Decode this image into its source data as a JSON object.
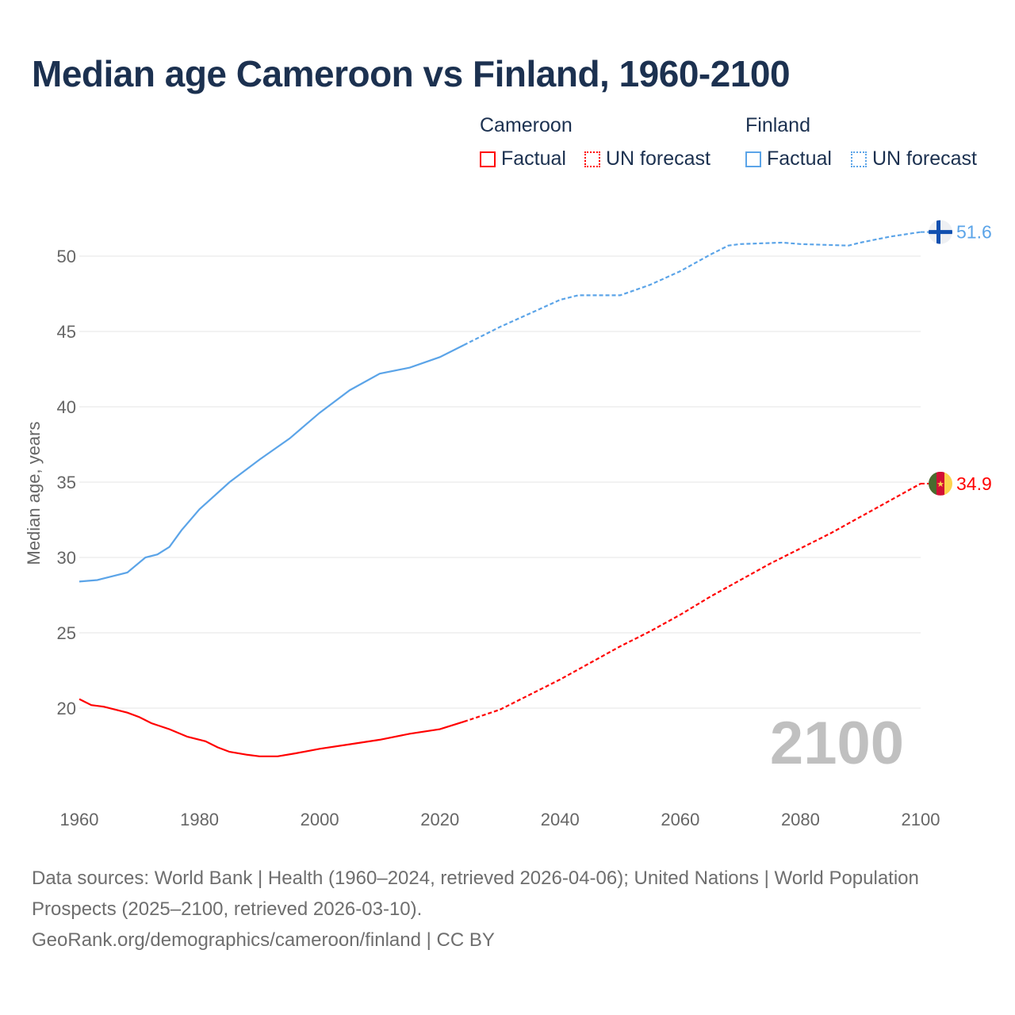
{
  "title": "Median age Cameroon vs Finland, 1960-2100",
  "legend": {
    "groups": [
      {
        "name": "Cameroon",
        "color": "#ff0000",
        "factual": "Factual",
        "forecast": "UN forecast"
      },
      {
        "name": "Finland",
        "color": "#5ba4e8",
        "factual": "Factual",
        "forecast": "UN forecast"
      }
    ]
  },
  "year_watermark": "2100",
  "sources": {
    "line1": "Data sources: World Bank | Health (1960–2024, retrieved 2026-04-06); United Nations | World Population Prospects (2025–2100, retrieved 2026-03-10).",
    "line2": "GeoRank.org/demographics/cameroon/finland | CC BY"
  },
  "chart_data": {
    "type": "line",
    "title": "Median age Cameroon vs Finland, 1960-2100",
    "xlabel": "",
    "ylabel": "Median age, years",
    "xlim": [
      1960,
      2100
    ],
    "ylim": [
      15,
      52
    ],
    "x_ticks": [
      1960,
      1980,
      2000,
      2020,
      2040,
      2060,
      2080,
      2100
    ],
    "y_ticks": [
      20,
      25,
      30,
      35,
      40,
      45,
      50
    ],
    "grid": true,
    "forecast_start": 2024,
    "series": [
      {
        "name": "Cameroon",
        "color": "#ff0000",
        "end_label": "34.9",
        "flag": "cameroon-flag",
        "x": [
          1960,
          1962,
          1964,
          1968,
          1970,
          1972,
          1975,
          1978,
          1981,
          1983,
          1985,
          1988,
          1990,
          1993,
          1996,
          2000,
          2005,
          2010,
          2015,
          2020,
          2024,
          2030,
          2035,
          2040,
          2045,
          2050,
          2055,
          2060,
          2065,
          2070,
          2075,
          2080,
          2085,
          2090,
          2095,
          2100
        ],
        "y": [
          20.6,
          20.2,
          20.1,
          19.7,
          19.4,
          19.0,
          18.6,
          18.1,
          17.8,
          17.4,
          17.1,
          16.9,
          16.8,
          16.8,
          17.0,
          17.3,
          17.6,
          17.9,
          18.3,
          18.6,
          19.1,
          19.9,
          20.9,
          21.9,
          23.0,
          24.1,
          25.1,
          26.2,
          27.4,
          28.5,
          29.6,
          30.6,
          31.6,
          32.7,
          33.8,
          34.9
        ]
      },
      {
        "name": "Finland",
        "color": "#5ba4e8",
        "end_label": "51.6",
        "flag": "finland-flag",
        "x": [
          1960,
          1963,
          1968,
          1971,
          1973,
          1975,
          1977,
          1980,
          1985,
          1990,
          1995,
          2000,
          2005,
          2010,
          2015,
          2020,
          2024,
          2030,
          2035,
          2040,
          2043,
          2050,
          2055,
          2060,
          2065,
          2068,
          2070,
          2077,
          2080,
          2088,
          2090,
          2095,
          2100
        ],
        "y": [
          28.4,
          28.5,
          29.0,
          30.0,
          30.2,
          30.7,
          31.8,
          33.2,
          35.0,
          36.5,
          37.9,
          39.6,
          41.1,
          42.2,
          42.6,
          43.3,
          44.1,
          45.3,
          46.2,
          47.1,
          47.4,
          47.4,
          48.1,
          49.0,
          50.1,
          50.7,
          50.8,
          50.9,
          50.8,
          50.7,
          50.9,
          51.3,
          51.6
        ]
      }
    ]
  }
}
